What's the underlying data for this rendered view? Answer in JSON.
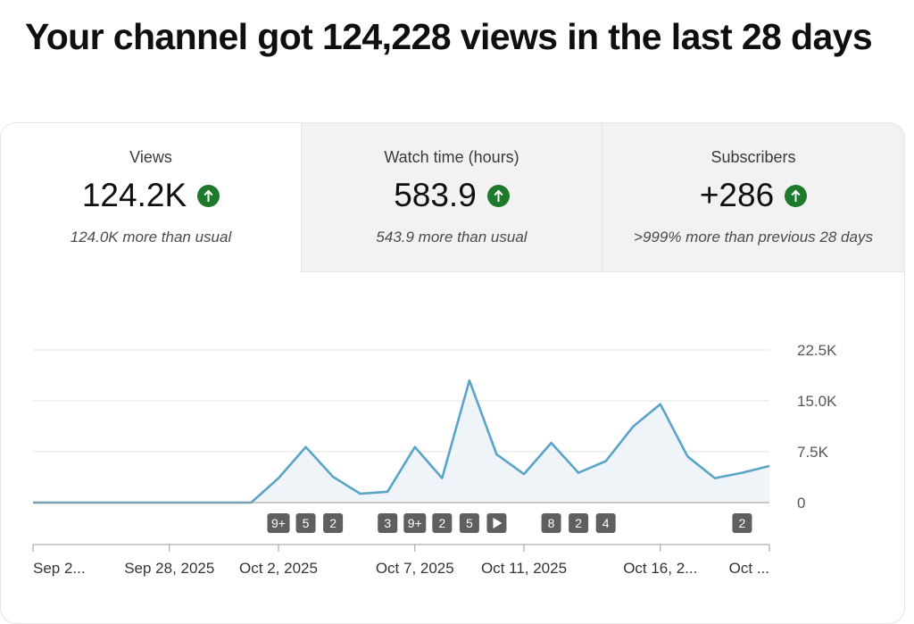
{
  "headline": "Your channel got 124,228 views in the last 28 days",
  "tabs": [
    {
      "label": "Views",
      "value": "124.2K",
      "sub": "124.0K more than usual",
      "trend": "up",
      "active": true
    },
    {
      "label": "Watch time (hours)",
      "value": "583.9",
      "sub": "543.9 more than usual",
      "trend": "up",
      "active": false
    },
    {
      "label": "Subscribers",
      "value": "+286",
      "sub": ">999% more than previous 28 days",
      "trend": "up",
      "active": false
    }
  ],
  "colors": {
    "line": "#5aa4c8",
    "area": "#eef4f8",
    "trend_up": "#1e7a2a",
    "marker": "#5f5f5f"
  },
  "chart_data": {
    "type": "area",
    "series": [
      {
        "values": [
          0,
          0,
          0,
          0,
          0,
          0,
          0,
          0,
          0,
          3600,
          8200,
          3800,
          1300,
          1600,
          8200,
          3600,
          18000,
          7100,
          4200,
          8800,
          4400,
          6100,
          11200,
          14500,
          6800,
          3600,
          4400,
          5400
        ]
      }
    ],
    "ylim": [
      0,
      22500
    ],
    "yticks": [
      0,
      7500,
      15000,
      22500
    ],
    "ytick_labels": [
      "0",
      "7.5K",
      "15.0K",
      "22.5K"
    ],
    "xtick_labels": [
      {
        "label": "Sep 2...",
        "index": 0
      },
      {
        "label": "Sep 28, 2025",
        "index": 5
      },
      {
        "label": "Oct 2, 2025",
        "index": 9
      },
      {
        "label": "Oct 7, 2025",
        "index": 14
      },
      {
        "label": "Oct 11, 2025",
        "index": 18
      },
      {
        "label": "Oct 16, 2...",
        "index": 23
      },
      {
        "label": "Oct ...",
        "index": 27
      }
    ],
    "grid": true,
    "markers": [
      {
        "label": "9+",
        "index": 9
      },
      {
        "label": "5",
        "index": 10
      },
      {
        "label": "2",
        "index": 11
      },
      {
        "label": "3",
        "index": 13
      },
      {
        "label": "9+",
        "index": 14
      },
      {
        "label": "2",
        "index": 15
      },
      {
        "label": "5",
        "index": 16
      },
      {
        "label": "play",
        "index": 17
      },
      {
        "label": "8",
        "index": 19
      },
      {
        "label": "2",
        "index": 20
      },
      {
        "label": "4",
        "index": 21
      },
      {
        "label": "2",
        "index": 26
      }
    ]
  }
}
